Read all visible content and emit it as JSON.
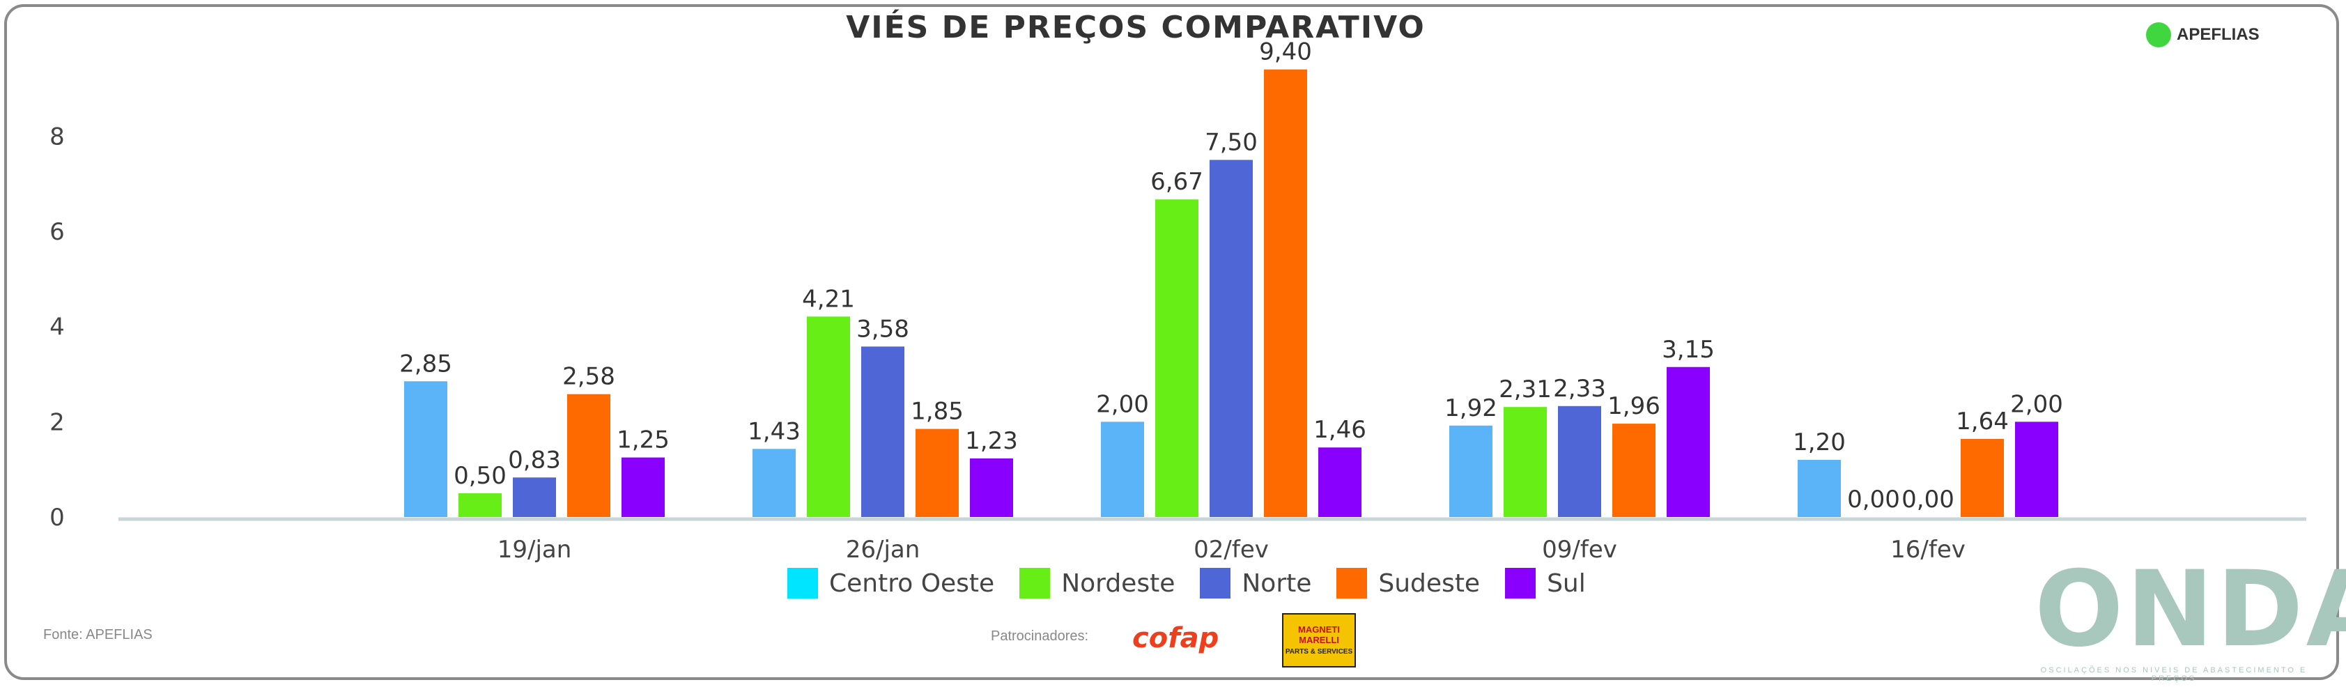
{
  "title": "VIÉS DE PREÇOS COMPARATIVO",
  "brand": "APEFLIAS",
  "source": "Fonte: APEFLIAS",
  "sponsor_label": "Patrocinadores:",
  "sponsors": {
    "cofap": "cofap",
    "magneti": "MAGNETI MARELLI",
    "magneti_sub": "PARTS & SERVICES"
  },
  "onda": {
    "logo": "ONDA",
    "tagline": "OSCILAÇÕES NOS NIVEIS DE ABASTECIMENTO E PREÇOS"
  },
  "colors": {
    "Centro Oeste": "#5ab4f7",
    "Nordeste": "#66ee16",
    "Norte": "#4f66d6",
    "Sudeste": "#ff6a00",
    "Sul": "#8a00ff",
    "Centro Oeste Legend": "#00e5ff"
  },
  "chart_data": {
    "type": "bar",
    "title": "VIÉS DE PREÇOS COMPARATIVO",
    "categories": [
      "19/jan",
      "26/jan",
      "02/fev",
      "09/fev",
      "16/fev"
    ],
    "ylim": [
      0,
      9.6
    ],
    "yticks": [
      0,
      2,
      4,
      6,
      8
    ],
    "series": [
      {
        "name": "Centro Oeste",
        "values": [
          2.85,
          1.43,
          2.0,
          1.92,
          1.2
        ],
        "labels": [
          "2,85",
          "1,43",
          "2,00",
          "1,92",
          "1,20"
        ]
      },
      {
        "name": "Nordeste",
        "values": [
          0.5,
          4.21,
          6.67,
          2.31,
          0.0
        ],
        "labels": [
          "0,50",
          "4,21",
          "6,67",
          "2,31",
          "0,00"
        ]
      },
      {
        "name": "Norte",
        "values": [
          0.83,
          3.58,
          7.5,
          2.33,
          0.0
        ],
        "labels": [
          "0,83",
          "3,58",
          "7,50",
          "2,33",
          "0,00"
        ]
      },
      {
        "name": "Sudeste",
        "values": [
          2.58,
          1.85,
          9.4,
          1.96,
          1.64
        ],
        "labels": [
          "2,58",
          "1,85",
          "9,40",
          "1,96",
          "1,64"
        ]
      },
      {
        "name": "Sul",
        "values": [
          1.25,
          1.23,
          1.46,
          3.15,
          2.0
        ],
        "labels": [
          "1,25",
          "1,23",
          "1,46",
          "3,15",
          "2,00"
        ]
      }
    ],
    "legend_position": "bottom",
    "grid": false
  }
}
